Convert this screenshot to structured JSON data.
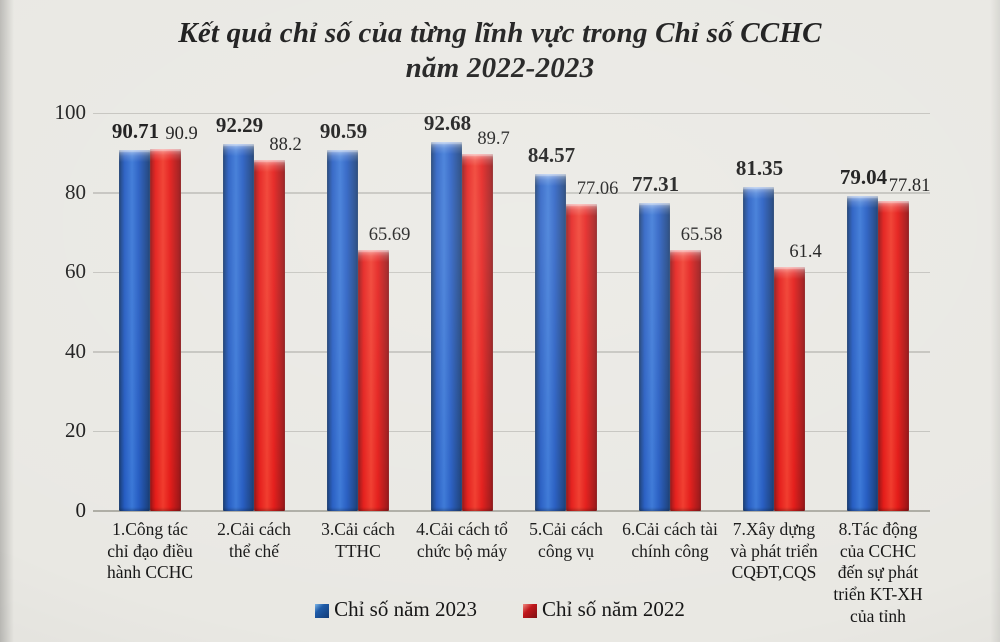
{
  "title": "Kết quả chỉ số của từng lĩnh vực trong Chỉ số CCHC\nnăm 2022-2023",
  "chart_data": {
    "type": "bar",
    "title": "Kết quả chỉ số của từng lĩnh vực trong Chỉ số CCHC năm 2022-2023",
    "categories": [
      "1.Công tác\nchỉ đạo điều\nhành CCHC",
      "2.Cải cách\nthể chế",
      "3.Cải cách\nTTHC",
      "4.Cải cách tổ\nchức bộ máy",
      "5.Cải cách\ncông vụ",
      "6.Cải cách tài\nchính công",
      "7.Xây dựng\nvà phát triển\nCQĐT,CQS",
      "8.Tác động\ncủa CCHC\nđến sự phát\ntriển KT-XH\ncủa tỉnh"
    ],
    "series": [
      {
        "name": "Chỉ số năm 2023",
        "color": "#2058c0",
        "dark": "#12376f",
        "light": "#3574d6",
        "values": [
          90.71,
          92.29,
          90.59,
          92.68,
          84.57,
          77.31,
          81.35,
          79.04
        ]
      },
      {
        "name": "Chỉ số năm 2022",
        "color": "#e31512",
        "dark": "#8f0e10",
        "light": "#f03526",
        "values": [
          90.9,
          88.2,
          65.69,
          89.7,
          77.06,
          65.58,
          61.4,
          77.81
        ]
      }
    ],
    "yticks": [
      0,
      20,
      40,
      60,
      80,
      100
    ],
    "ylim": [
      0,
      100
    ],
    "grid": true,
    "legend_position": "bottom",
    "legend_swatch_gradients": {
      "s0": "linear-gradient(135deg, #7db6e8 0%, #1d5aa8 35%, #113a75 100%)",
      "s1": "linear-gradient(135deg, #f08a80 0%, #c01318 40%, #7c0d10 100%)"
    }
  }
}
